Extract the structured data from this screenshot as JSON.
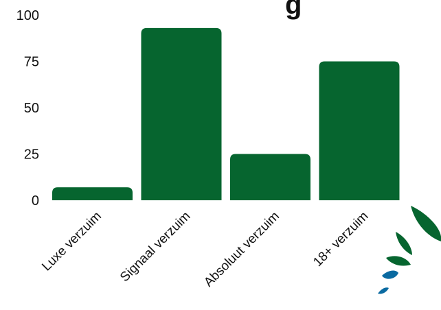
{
  "chart_data": {
    "type": "bar",
    "title": "g",
    "categories": [
      "Luxe verzuim",
      "Signaal verzuim",
      "Absoluut verzuim",
      "18+ verzuim"
    ],
    "values": [
      7,
      93,
      25,
      75
    ],
    "ylim": [
      0,
      100
    ],
    "yticks": [
      "0",
      "25",
      "50",
      "75",
      "100"
    ],
    "grid": false,
    "bar_color": "#06652f"
  },
  "decoration": {
    "logo_icon": "leaf-logo-icon",
    "leaf_colors": [
      "#06652f",
      "#0a6aa1"
    ]
  }
}
